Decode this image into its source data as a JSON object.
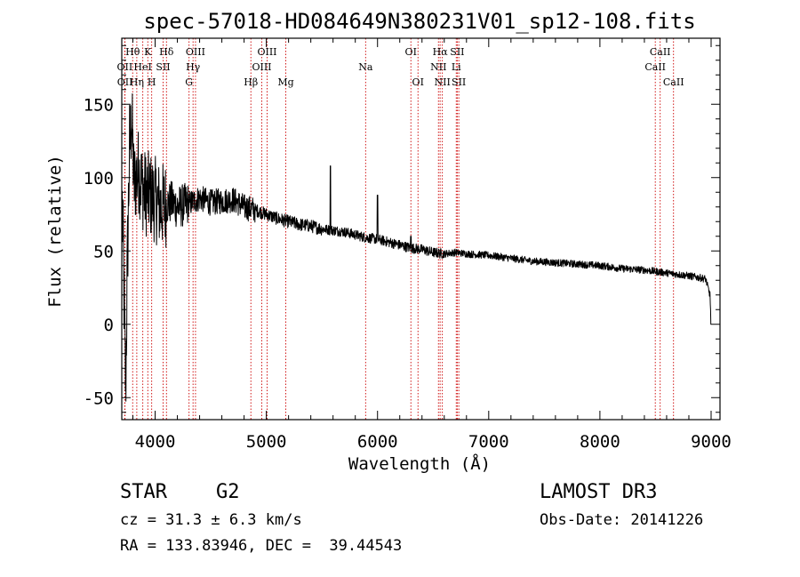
{
  "chart_data": {
    "type": "line",
    "title": "spec-57018-HD084649N380231V01_sp12-108.fits",
    "xlabel": "Wavelength (Å)",
    "ylabel": "Flux (relative)",
    "xlim": [
      3700,
      9080
    ],
    "ylim": [
      -65,
      195
    ],
    "xticks": [
      4000,
      5000,
      6000,
      7000,
      8000,
      9000
    ],
    "yticks": [
      -50,
      0,
      50,
      100,
      150
    ],
    "line_color": "#000000",
    "marker_color": "#cc0000",
    "series": [
      {
        "name": "flux",
        "anchors": [
          [
            3705,
            80
          ],
          [
            3720,
            20
          ],
          [
            3735,
            -45
          ],
          [
            3750,
            40
          ],
          [
            3770,
            120
          ],
          [
            3790,
            140
          ],
          [
            3810,
            95
          ],
          [
            3850,
            105
          ],
          [
            3900,
            90
          ],
          [
            3950,
            88
          ],
          [
            4000,
            85
          ],
          [
            4050,
            80
          ],
          [
            4100,
            82
          ],
          [
            4150,
            83
          ],
          [
            4200,
            80
          ],
          [
            4300,
            82
          ],
          [
            4400,
            86
          ],
          [
            4500,
            83
          ],
          [
            4600,
            84
          ],
          [
            4700,
            85
          ],
          [
            4800,
            80
          ],
          [
            4900,
            78
          ],
          [
            5000,
            75
          ],
          [
            5100,
            72
          ],
          [
            5200,
            70
          ],
          [
            5300,
            68
          ],
          [
            5400,
            67
          ],
          [
            5500,
            65
          ],
          [
            5600,
            64
          ],
          [
            5700,
            63
          ],
          [
            5800,
            61
          ],
          [
            5900,
            59
          ],
          [
            6000,
            58
          ],
          [
            6100,
            56
          ],
          [
            6200,
            54
          ],
          [
            6300,
            52
          ],
          [
            6400,
            51
          ],
          [
            6500,
            49
          ],
          [
            6600,
            48
          ],
          [
            6700,
            49
          ],
          [
            6800,
            48
          ],
          [
            7000,
            47
          ],
          [
            7200,
            45
          ],
          [
            7400,
            43
          ],
          [
            7600,
            42
          ],
          [
            7800,
            41
          ],
          [
            8000,
            40
          ],
          [
            8200,
            38
          ],
          [
            8400,
            37
          ],
          [
            8600,
            35
          ],
          [
            8800,
            33
          ],
          [
            8950,
            31
          ],
          [
            8990,
            20
          ],
          [
            9000,
            0
          ]
        ],
        "spikes": [
          [
            5577,
            108
          ],
          [
            6000,
            88
          ],
          [
            6300,
            60
          ]
        ]
      }
    ],
    "line_markers": [
      {
        "label": "Hθ",
        "wavelength": 3798,
        "row": 1
      },
      {
        "label": "OII",
        "wavelength": 3727,
        "row": 2
      },
      {
        "label": "OII",
        "wavelength": 3729,
        "row": 3
      },
      {
        "label": "Hη",
        "wavelength": 3835,
        "row": 3
      },
      {
        "label": "K",
        "wavelength": 3934,
        "row": 1
      },
      {
        "label": "HeI",
        "wavelength": 3889,
        "row": 2
      },
      {
        "label": "H",
        "wavelength": 3969,
        "row": 3
      },
      {
        "label": "SII",
        "wavelength": 4072,
        "row": 2
      },
      {
        "label": "Hδ",
        "wavelength": 4102,
        "row": 1
      },
      {
        "label": "OIII",
        "wavelength": 4363,
        "row": 1
      },
      {
        "label": "Hγ",
        "wavelength": 4341,
        "row": 2
      },
      {
        "label": "G",
        "wavelength": 4305,
        "row": 3
      },
      {
        "label": "Hβ",
        "wavelength": 4861,
        "row": 3
      },
      {
        "label": "OIII",
        "wavelength": 5007,
        "row": 1
      },
      {
        "label": "OIII",
        "wavelength": 4959,
        "row": 2
      },
      {
        "label": "Mg",
        "wavelength": 5175,
        "row": 3
      },
      {
        "label": "Na",
        "wavelength": 5893,
        "row": 2
      },
      {
        "label": "OI",
        "wavelength": 6300,
        "row": 1
      },
      {
        "label": "OI",
        "wavelength": 6364,
        "row": 3
      },
      {
        "label": "Hα",
        "wavelength": 6563,
        "row": 1
      },
      {
        "label": "NII",
        "wavelength": 6548,
        "row": 2
      },
      {
        "label": "NII",
        "wavelength": 6583,
        "row": 3
      },
      {
        "label": "SII",
        "wavelength": 6717,
        "row": 1
      },
      {
        "label": "Li",
        "wavelength": 6708,
        "row": 2
      },
      {
        "label": "SII",
        "wavelength": 6731,
        "row": 3
      },
      {
        "label": "CaII",
        "wavelength": 8542,
        "row": 1
      },
      {
        "label": "CaII",
        "wavelength": 8498,
        "row": 2
      },
      {
        "label": "CaII",
        "wavelength": 8662,
        "row": 3
      }
    ]
  },
  "info": {
    "object_class": "STAR",
    "subclass": "G2",
    "survey": "LAMOST DR3",
    "redshift": "cz = 31.3 ± 6.3 km/s",
    "obs_date": "Obs-Date: 20141226",
    "coords": "RA = 133.83946, DEC =  39.44543"
  }
}
